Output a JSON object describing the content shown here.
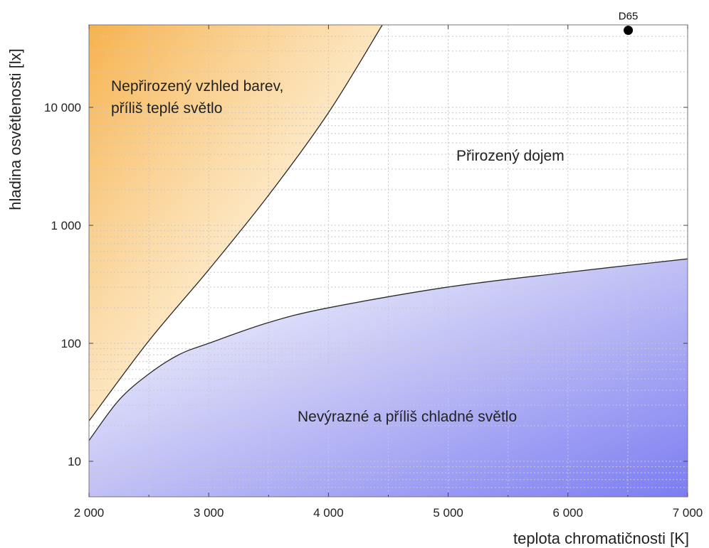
{
  "chart_data": {
    "type": "line",
    "xlabel": "teplota chromatičnosti [K]",
    "ylabel": "hladina osvětlenosti [lx]",
    "xlim": [
      2000,
      7000
    ],
    "ylim": [
      5,
      50000
    ],
    "yscale": "log",
    "grid": true,
    "x_ticks": [
      2000,
      3000,
      4000,
      5000,
      6000,
      7000
    ],
    "x_tick_labels": [
      "2 000",
      "3 000",
      "4 000",
      "5 000",
      "6 000",
      "7 000"
    ],
    "y_ticks": [
      10,
      100,
      1000,
      10000
    ],
    "y_tick_labels": [
      "10",
      "100",
      "1 000",
      "10 000"
    ],
    "series": [
      {
        "role": "upper-boundary",
        "x": [
          2000,
          2500,
          3000,
          3500,
          4000,
          4450
        ],
        "y": [
          22,
          105,
          420,
          1800,
          9000,
          50000
        ]
      },
      {
        "role": "lower-boundary",
        "x": [
          2000,
          2250,
          2500,
          2750,
          3000,
          3500,
          4000,
          5000,
          6000,
          7000
        ],
        "y": [
          15,
          33,
          55,
          80,
          100,
          150,
          200,
          300,
          400,
          520
        ]
      }
    ],
    "regions": [
      {
        "label_lines": [
          "Nepřirozený vzhled barev,",
          "příliš teplé světlo"
        ],
        "color": "#f6b04a"
      },
      {
        "label_lines": [
          "Přirozený dojem"
        ],
        "color": "#ffffff"
      },
      {
        "label_lines": [
          "Nevýrazné a příliš chladné světlo"
        ],
        "color": "#8080f4"
      }
    ],
    "points": [
      {
        "label": "D65",
        "x": 6504,
        "y": 45000
      }
    ]
  }
}
